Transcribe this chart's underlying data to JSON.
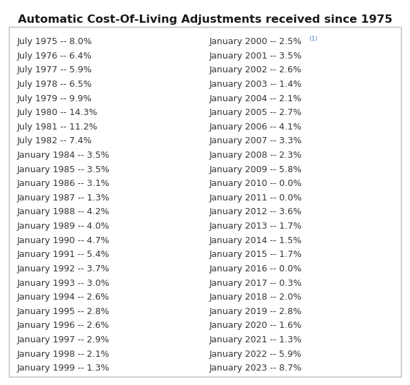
{
  "title": "Automatic Cost-Of-Living Adjustments received since 1975",
  "left_column": [
    "July 1975 -- 8.0%",
    "July 1976 -- 6.4%",
    "July 1977 -- 5.9%",
    "July 1978 -- 6.5%",
    "July 1979 -- 9.9%",
    "July 1980 -- 14.3%",
    "July 1981 -- 11.2%",
    "July 1982 -- 7.4%",
    "January 1984 -- 3.5%",
    "January 1985 -- 3.5%",
    "January 1986 -- 3.1%",
    "January 1987 -- 1.3%",
    "January 1988 -- 4.2%",
    "January 1989 -- 4.0%",
    "January 1990 -- 4.7%",
    "January 1991 -- 5.4%",
    "January 1992 -- 3.7%",
    "January 1993 -- 3.0%",
    "January 1994 -- 2.6%",
    "January 1995 -- 2.8%",
    "January 1996 -- 2.6%",
    "January 1997 -- 2.9%",
    "January 1998 -- 2.1%",
    "January 1999 -- 1.3%"
  ],
  "right_column": [
    "January 2000 -- 2.5%",
    "January 2001 -- 3.5%",
    "January 2002 -- 2.6%",
    "January 2003 -- 1.4%",
    "January 2004 -- 2.1%",
    "January 2005 -- 2.7%",
    "January 2006 -- 4.1%",
    "January 2007 -- 3.3%",
    "January 2008 -- 2.3%",
    "January 2009 -- 5.8%",
    "January 2010 -- 0.0%",
    "January 2011 -- 0.0%",
    "January 2012 -- 3.6%",
    "January 2013 -- 1.7%",
    "January 2014 -- 1.5%",
    "January 2015 -- 1.7%",
    "January 2016 -- 0.0%",
    "January 2017 -- 0.3%",
    "January 2018 -- 2.0%",
    "January 2019 -- 2.8%",
    "January 2020 -- 1.6%",
    "January 2021 -- 1.3%",
    "January 2022 -- 5.9%",
    "January 2023 -- 8.7%"
  ],
  "right_first_superscript": "(1)",
  "bg_color": "#ffffff",
  "border_color": "#bbbbbb",
  "text_color": "#333333",
  "title_color": "#1a1a1a",
  "superscript_color": "#4a86c8",
  "font_size": 9.2,
  "title_font_size": 11.8
}
